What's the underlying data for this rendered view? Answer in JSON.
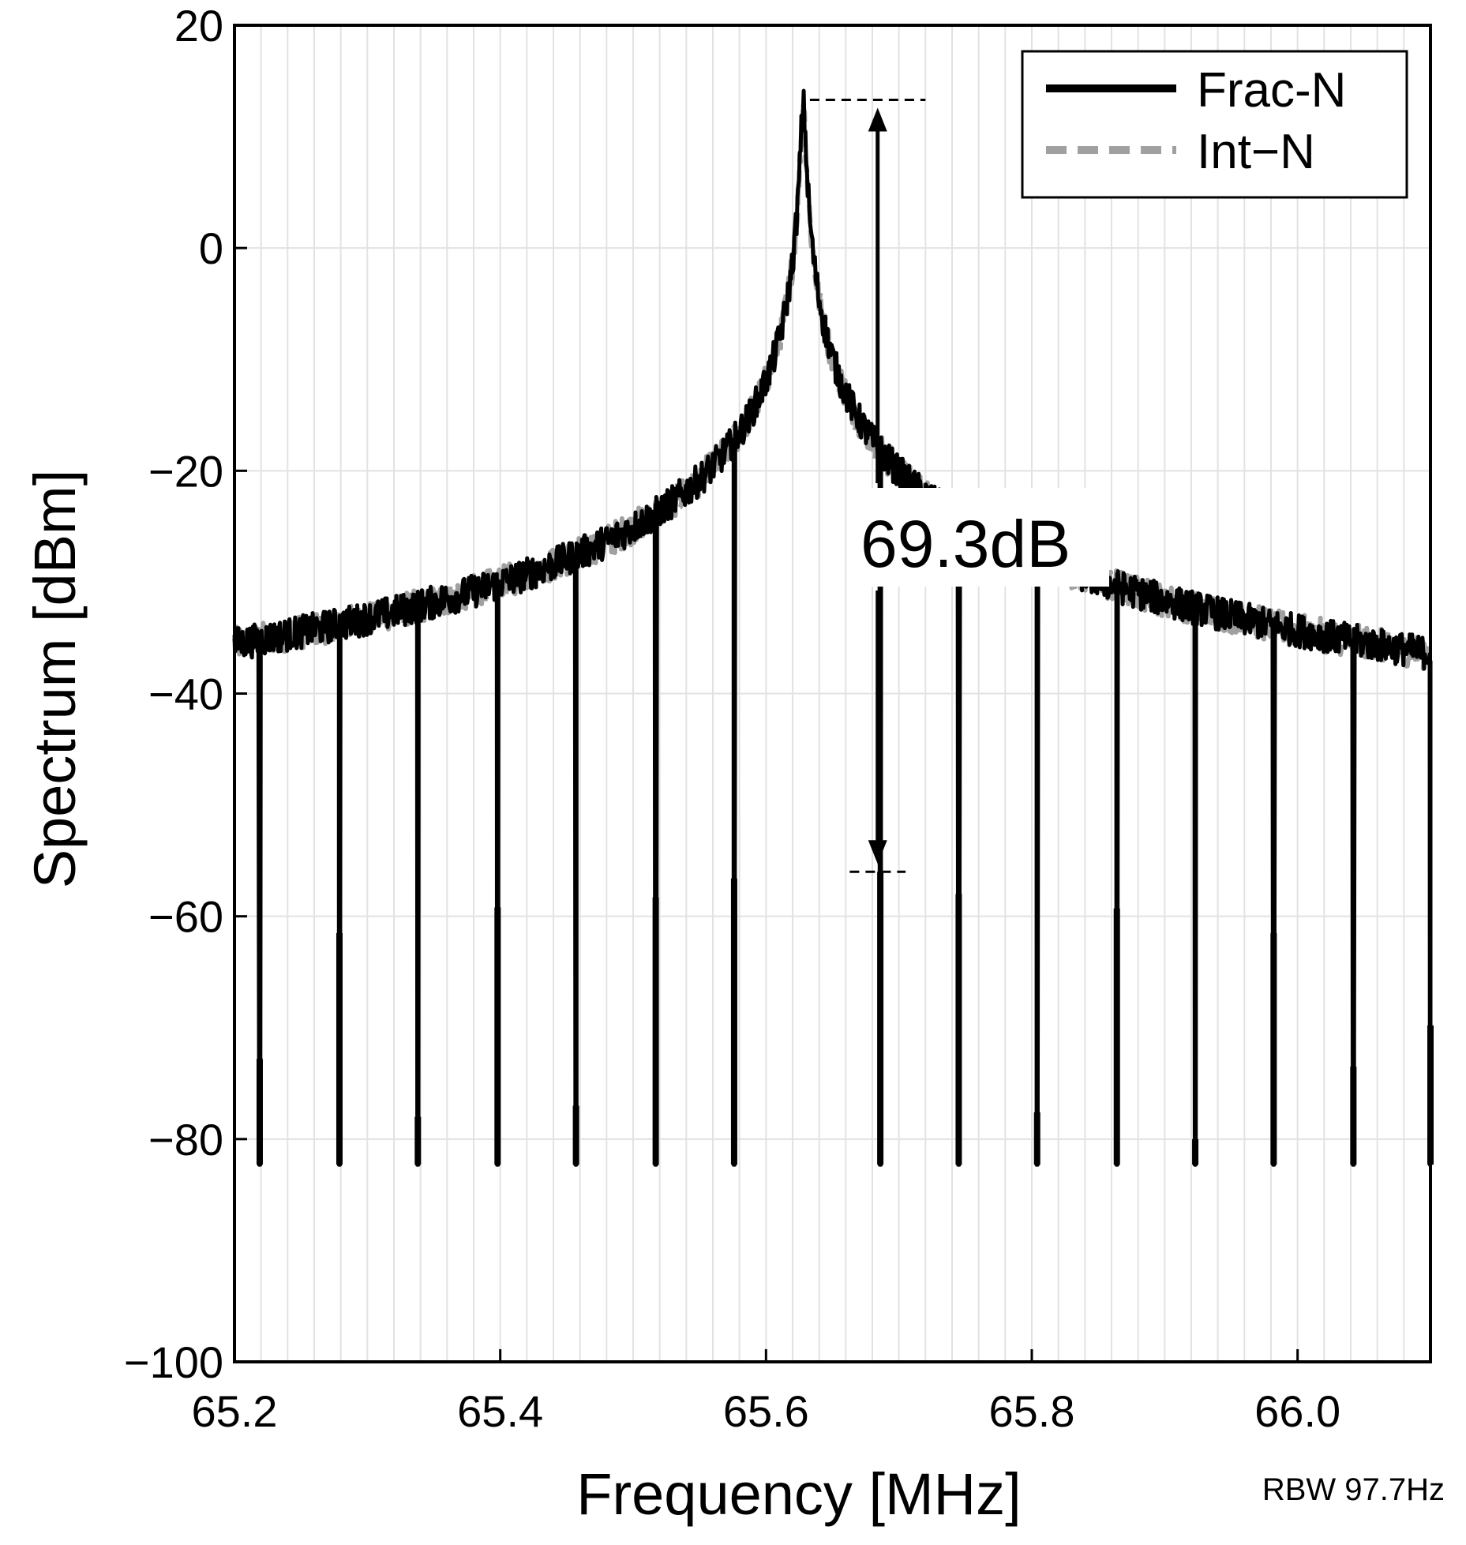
{
  "chart_data": {
    "type": "line",
    "xlabel": "Frequency [MHz]",
    "ylabel": "Spectrum [dBm]",
    "xlim": [
      65.2,
      66.1
    ],
    "ylim": [
      -100,
      20
    ],
    "xticks": [
      "65.2",
      "65.4",
      "65.6",
      "65.8",
      "66.0"
    ],
    "yticks": [
      "20",
      "0",
      "−20",
      "−40",
      "−60",
      "−80",
      "−100"
    ],
    "xtick_values": [
      65.2,
      65.4,
      65.6,
      65.8,
      66.0
    ],
    "ytick_values": [
      20,
      0,
      -20,
      -40,
      -60,
      -80,
      -100
    ],
    "grid": true,
    "legend_position": "top-right",
    "carrier_frequency": 65.628,
    "series": [
      {
        "name": "Frac-N",
        "color": "#000000",
        "style": "solid",
        "carrier_peak": 13,
        "noise_floor": -82.3,
        "spurs": [
          {
            "x": 65.219,
            "y": -72.8
          },
          {
            "x": 65.279,
            "y": -61.5
          },
          {
            "x": 65.338,
            "y": -78.0
          },
          {
            "x": 65.398,
            "y": -59.2
          },
          {
            "x": 65.457,
            "y": -77.0
          },
          {
            "x": 65.517,
            "y": -58.3
          },
          {
            "x": 65.576,
            "y": -56.6
          },
          {
            "x": 65.686,
            "y": -56.0
          },
          {
            "x": 65.745,
            "y": -58.0
          },
          {
            "x": 65.804,
            "y": -77.6
          },
          {
            "x": 65.864,
            "y": -59.3
          },
          {
            "x": 65.923,
            "y": -80.0
          },
          {
            "x": 65.982,
            "y": -61.5
          },
          {
            "x": 66.042,
            "y": -73.5
          },
          {
            "x": 66.1,
            "y": -69.8
          }
        ]
      },
      {
        "name": "Int−N",
        "color": "#a0a0a0",
        "style": "dashed",
        "carrier_peak": 13,
        "noise_floor": -83.6,
        "spurs": []
      }
    ],
    "annotations": [
      {
        "text": "69.3dB",
        "from": 13.3,
        "to": -56.0
      }
    ],
    "note": "RBW 97.7Hz"
  }
}
